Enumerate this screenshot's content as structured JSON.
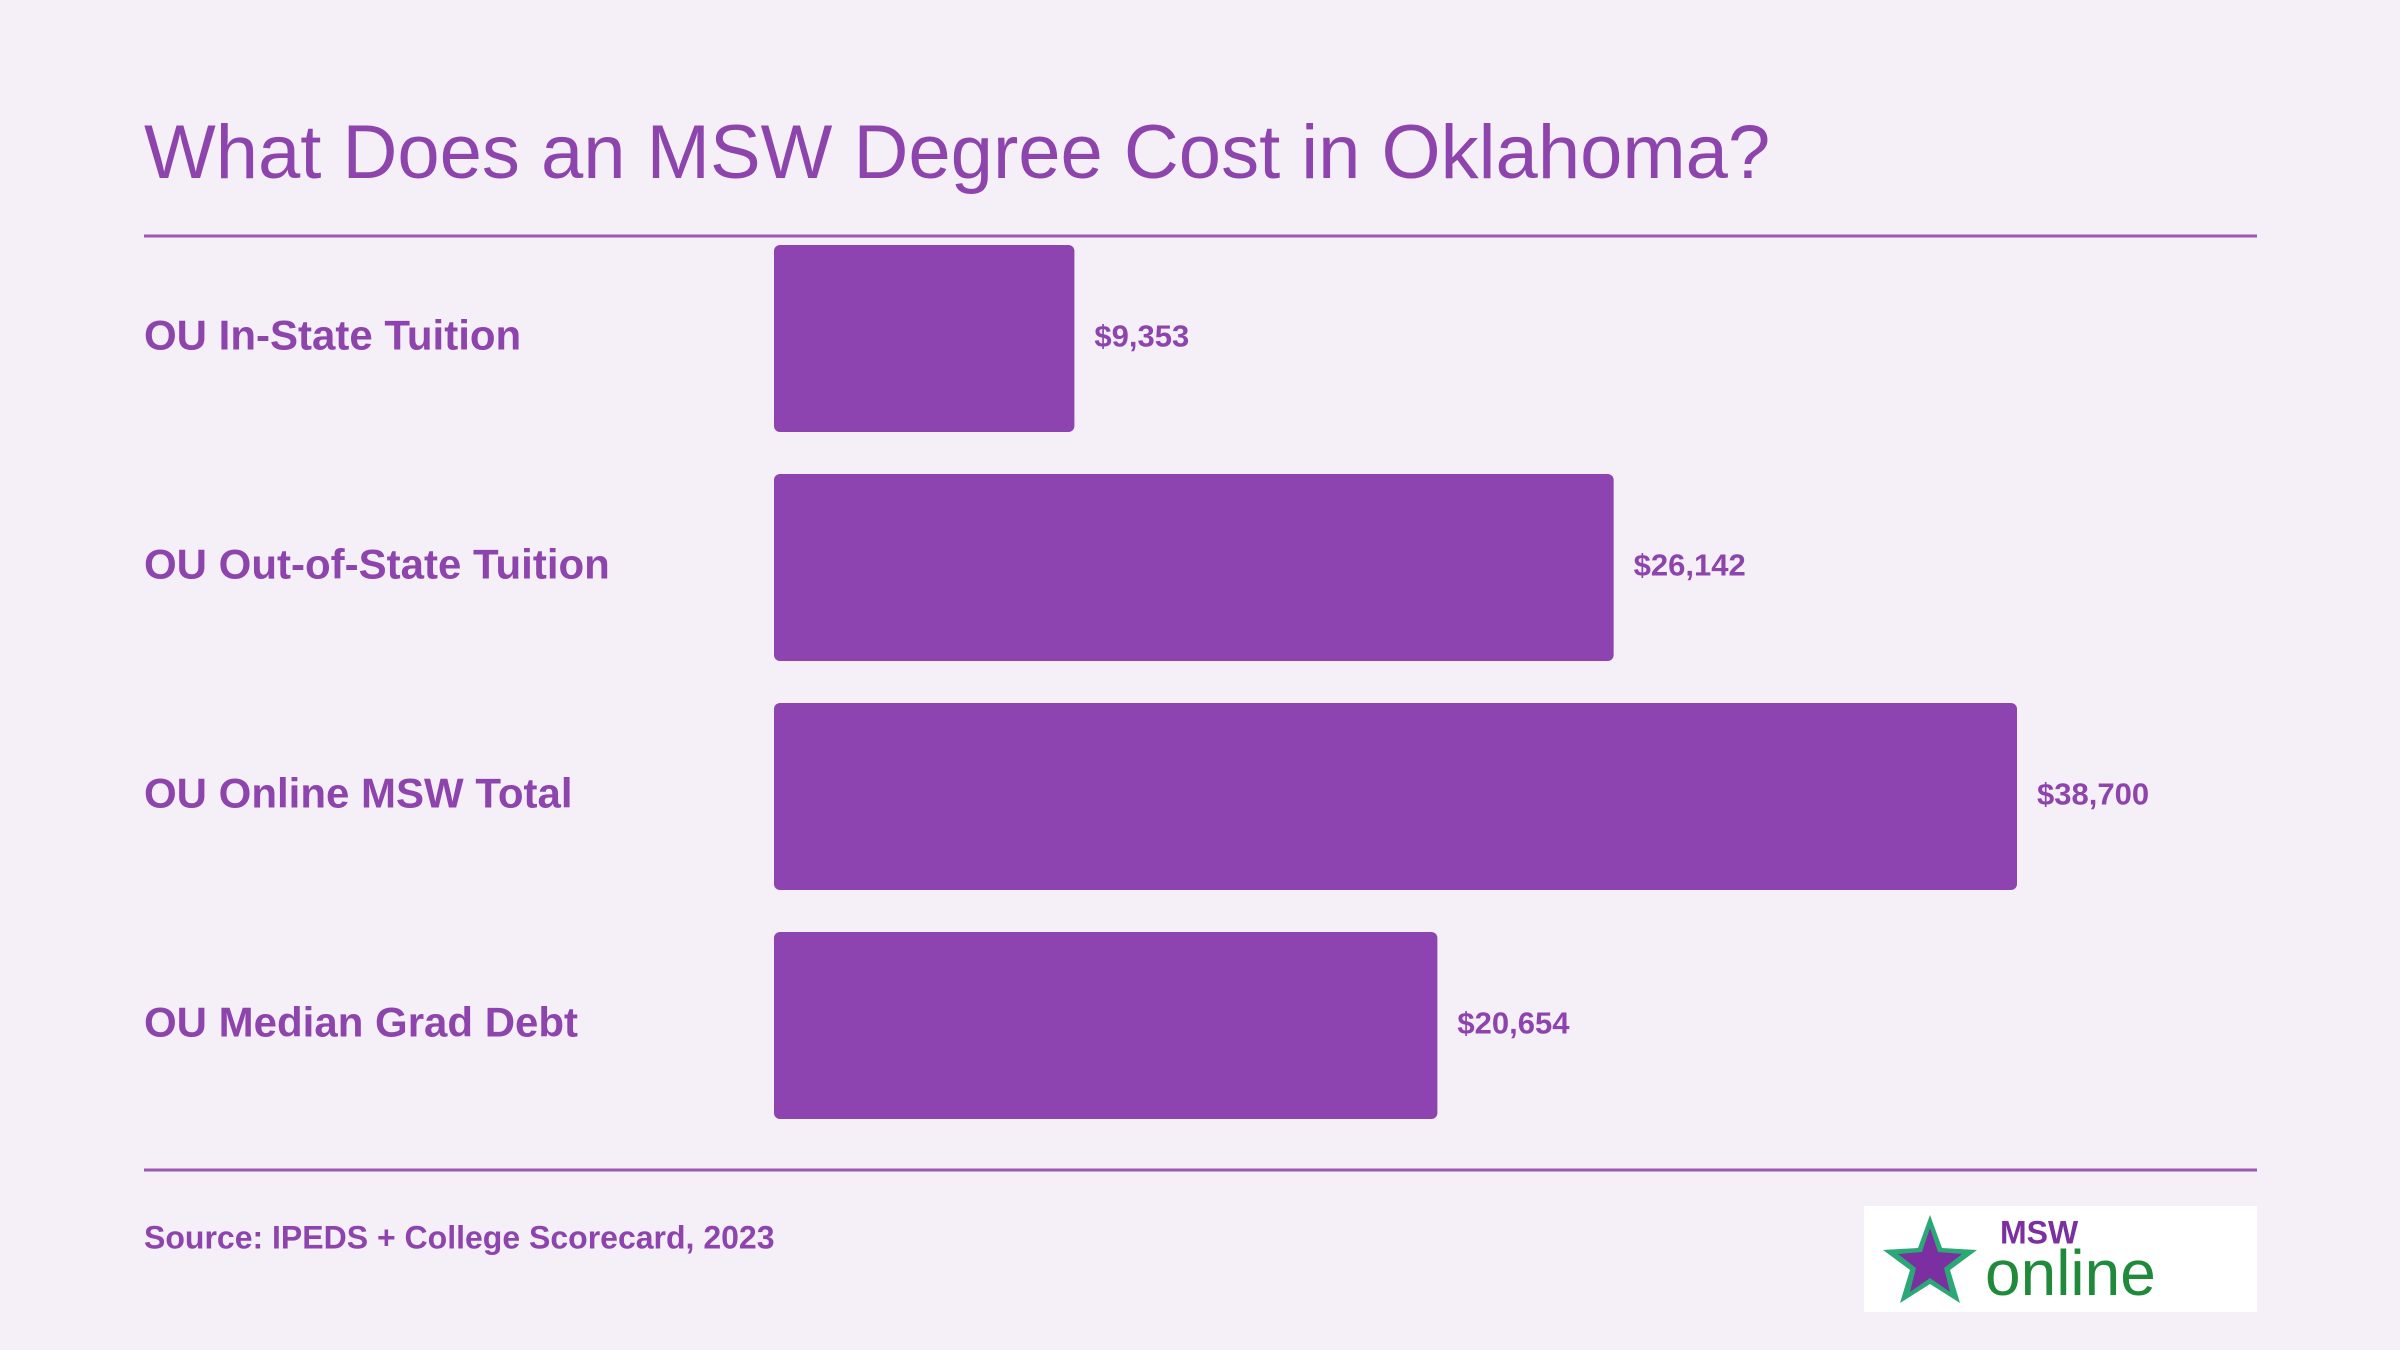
{
  "chart_data": {
    "type": "bar",
    "orientation": "horizontal",
    "title": "What Does an MSW Degree Cost in Oklahoma?",
    "categories": [
      "OU In-State Tuition",
      "OU Out-of-State Tuition",
      "OU Online MSW Total",
      "OU Median Grad Debt"
    ],
    "values": [
      9353,
      26142,
      38700,
      20654
    ],
    "value_labels": [
      "$9,353",
      "$26,142",
      "$38,700",
      "$20,654"
    ],
    "color": "#8e44b0",
    "source": "Source: IPEDS + College Scorecard, 2023"
  },
  "logo": {
    "top": "MSW",
    "bottom": "online"
  }
}
